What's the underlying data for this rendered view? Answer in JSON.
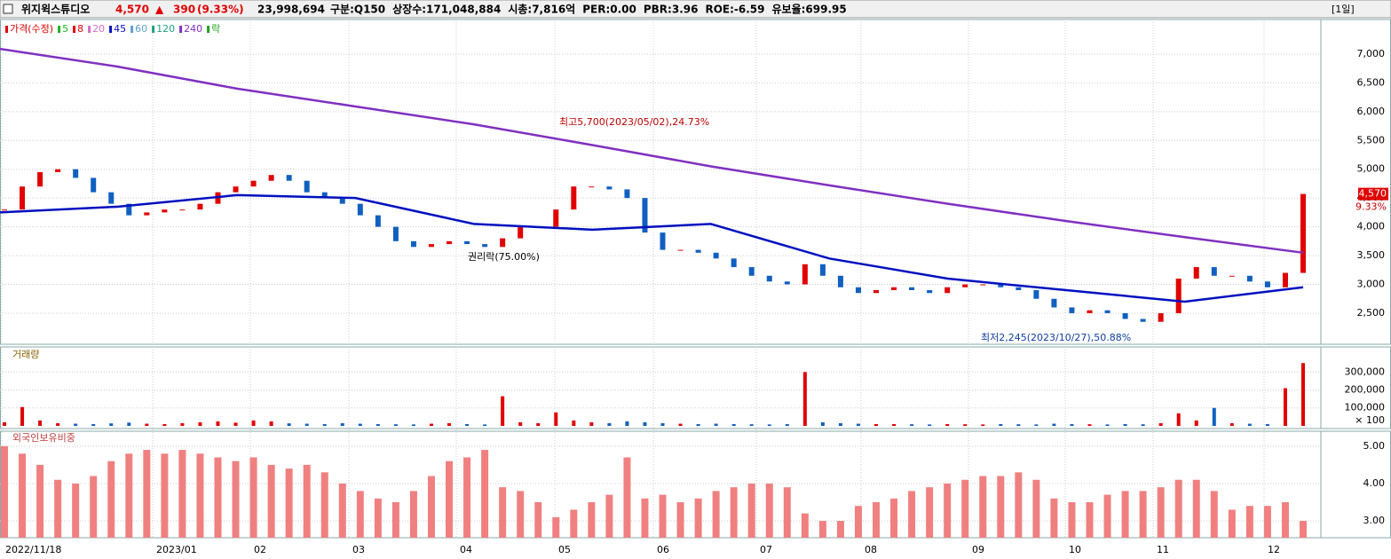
{
  "header": {
    "name": "위지윅스튜디오",
    "price": "4,570",
    "arrow": "▲",
    "change": "390",
    "change_pct": "(9.33%)",
    "volume": "23,998,694",
    "items": [
      "구분:Q150",
      "상장수:171,048,884",
      "시총:7,816억",
      "PER:0.00",
      "PBR:3.96",
      "ROE:-6.59",
      "유보율:699.95"
    ],
    "period": "[1일]"
  },
  "chart_data": [
    {
      "type": "candle",
      "legend": [
        {
          "name": "가격(수정)",
          "color": "#e00000"
        },
        {
          "name": "5",
          "color": "#20b020"
        },
        {
          "name": "8",
          "color": "#e00000"
        },
        {
          "name": "20",
          "color": "#d070c0"
        },
        {
          "name": "45",
          "color": "#0010c0"
        },
        {
          "name": "60",
          "color": "#60a0d0"
        },
        {
          "name": "120",
          "color": "#20a080"
        },
        {
          "name": "240",
          "color": "#8030c0"
        },
        {
          "name": "락",
          "color": "#20a020"
        }
      ],
      "closes": [
        4300,
        4700,
        4950,
        5000,
        4850,
        4600,
        4400,
        4200,
        4250,
        4300,
        4300,
        4400,
        4600,
        4700,
        4800,
        4900,
        4800,
        4600,
        4500,
        4400,
        4200,
        4000,
        3750,
        3650,
        3700,
        3750,
        3700,
        3650,
        3800,
        4000,
        4000,
        4300,
        4700,
        4700,
        4650,
        4500,
        3900,
        3600,
        3600,
        3550,
        3450,
        3300,
        3150,
        3050,
        3000,
        3350,
        3150,
        2950,
        2850,
        2900,
        2950,
        2900,
        2850,
        2950,
        3000,
        3000,
        2950,
        2900,
        2750,
        2600,
        2500,
        2550,
        2500,
        2400,
        2350,
        2500,
        3100,
        3300,
        3150,
        3150,
        3050,
        2950,
        3200,
        4570
      ],
      "up_color": "#e00000",
      "down_color": "#1060c0",
      "series": [
        {
          "color": "#0010c0",
          "values": [
            4250,
            4350,
            4550,
            4500,
            4050,
            3950,
            4050,
            3450,
            3100,
            2900,
            2700,
            2950
          ]
        },
        {
          "color": "#8030c0",
          "values": [
            7090,
            6780,
            6400,
            6090,
            5780,
            5420,
            5050,
            4720,
            4400,
            4100,
            3820,
            3550
          ]
        }
      ],
      "ylim": [
        1960,
        7600
      ],
      "yticks": [
        {
          "value": 7000,
          "label": "7,000"
        },
        {
          "value": 6500,
          "label": "6,500"
        },
        {
          "value": 6000,
          "label": "6,000"
        },
        {
          "value": 5500,
          "label": "5,500"
        },
        {
          "value": 5000,
          "label": "5,000"
        },
        {
          "value": 4500,
          "label": "4,500"
        },
        {
          "value": 4000,
          "label": "4,000"
        },
        {
          "value": 3500,
          "label": "3,500"
        },
        {
          "value": 3000,
          "label": "3,000"
        },
        {
          "value": 2500,
          "label": "2,500"
        }
      ],
      "annotations": [
        "최고5,700(2023/05/02),24.73%",
        "권리락(75.00%)",
        "최저2,245(2023/10/27),50.88%"
      ],
      "last_label": "4,570",
      "last_pct": "9.33%",
      "grid": true
    },
    {
      "type": "bar",
      "title": "거래량",
      "values": [
        20000,
        105000,
        30000,
        15000,
        12000,
        10000,
        14000,
        18000,
        12000,
        10000,
        15000,
        20000,
        25000,
        18000,
        30000,
        25000,
        14000,
        12000,
        10000,
        15000,
        12000,
        10000,
        9000,
        8000,
        12000,
        15000,
        10000,
        8000,
        165000,
        20000,
        15000,
        75000,
        30000,
        20000,
        15000,
        25000,
        20000,
        15000,
        12000,
        10000,
        12000,
        10000,
        9000,
        8000,
        10000,
        300000,
        20000,
        15000,
        12000,
        10000,
        10000,
        9000,
        8000,
        10000,
        9000,
        8000,
        10000,
        9000,
        8000,
        12000,
        10000,
        9000,
        8000,
        10000,
        9000,
        15000,
        70000,
        30000,
        100000,
        15000,
        12000,
        10000,
        210000,
        350000
      ],
      "ylim": [
        -15000,
        440000
      ],
      "yticks": [
        {
          "value": 300000,
          "label": "300,000"
        },
        {
          "value": 200000,
          "label": "200,000"
        },
        {
          "value": 100000,
          "label": "100,000"
        }
      ],
      "unit": "× 100",
      "grid": true
    },
    {
      "type": "bar",
      "title": "외국인보유비중",
      "color": "#f08080",
      "values": [
        5.0,
        4.8,
        4.5,
        4.1,
        4.0,
        4.2,
        4.6,
        4.8,
        4.9,
        4.8,
        4.9,
        4.8,
        4.7,
        4.6,
        4.7,
        4.5,
        4.4,
        4.5,
        4.3,
        4.0,
        3.8,
        3.6,
        3.5,
        3.8,
        4.2,
        4.6,
        4.7,
        4.9,
        3.9,
        3.8,
        3.5,
        3.1,
        3.3,
        3.5,
        3.7,
        4.7,
        3.6,
        3.7,
        3.5,
        3.6,
        3.8,
        3.9,
        4.0,
        4.0,
        3.9,
        3.2,
        3.0,
        3.0,
        3.4,
        3.5,
        3.6,
        3.8,
        3.9,
        4.0,
        4.1,
        4.2,
        4.2,
        4.3,
        4.1,
        3.6,
        3.5,
        3.5,
        3.7,
        3.8,
        3.8,
        3.9,
        4.1,
        4.1,
        3.8,
        3.3,
        3.4,
        3.4,
        3.5,
        3.0
      ],
      "ylim": [
        2.55,
        5.4
      ],
      "yticks": [
        {
          "value": 5,
          "label": "5.00"
        },
        {
          "value": 4,
          "label": "4.00"
        },
        {
          "value": 3,
          "label": "3.00"
        }
      ],
      "x_labels": [
        "2022/11/18",
        "2023/01",
        "02",
        "03",
        "04",
        "05",
        "06",
        "07",
        "08",
        "09",
        "10",
        "11",
        "12"
      ],
      "grid": true
    }
  ]
}
